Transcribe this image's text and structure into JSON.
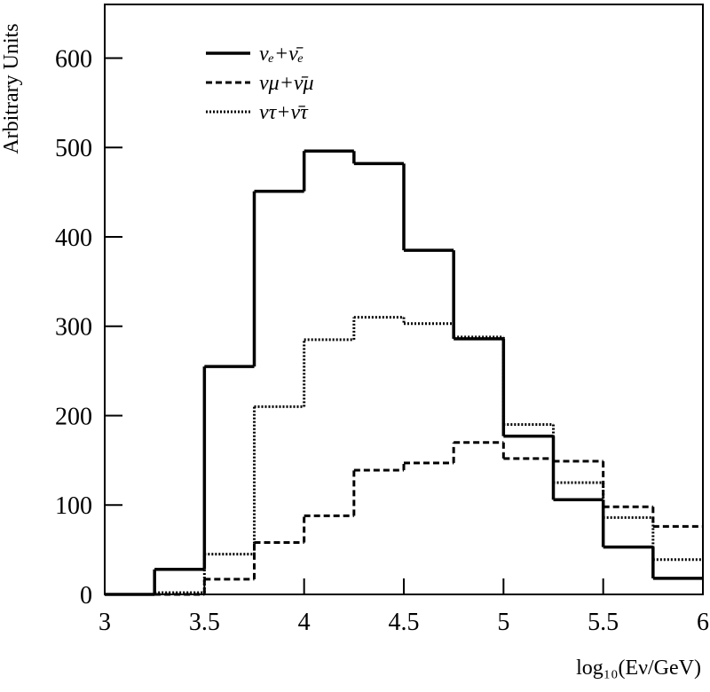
{
  "chart_data": {
    "type": "histogram",
    "xlabel": "log₁₀(Eν/GeV)",
    "ylabel": "Arbitrary Units",
    "bins": [
      3,
      3.25,
      3.5,
      3.75,
      4,
      4.25,
      4.5,
      4.75,
      5,
      5.25,
      5.5,
      5.75,
      6
    ],
    "series": [
      {
        "name": "νₑ+ν̄ₑ",
        "color": "#000000",
        "dash": "solid",
        "values": [
          0,
          28,
          255,
          451,
          496,
          482,
          385,
          286,
          177,
          106,
          53,
          18
        ]
      },
      {
        "name": "νμ+ν̄μ",
        "color": "#000000",
        "dash": "dashed",
        "values": [
          0,
          0,
          17,
          58,
          88,
          139,
          147,
          170,
          152,
          149,
          98,
          76
        ]
      },
      {
        "name": "ντ+ν̄τ",
        "color": "#000000",
        "dash": "dotted",
        "values": [
          0,
          2,
          45,
          210,
          285,
          310,
          303,
          288,
          190,
          125,
          86,
          39
        ]
      }
    ],
    "xlim": [
      3,
      6
    ],
    "ylim": [
      0,
      660
    ],
    "xticks": [
      3,
      3.5,
      4,
      4.5,
      5,
      5.5,
      6
    ],
    "yticks": [
      0,
      100,
      200,
      300,
      400,
      500,
      600
    ],
    "legend": "upper left"
  }
}
